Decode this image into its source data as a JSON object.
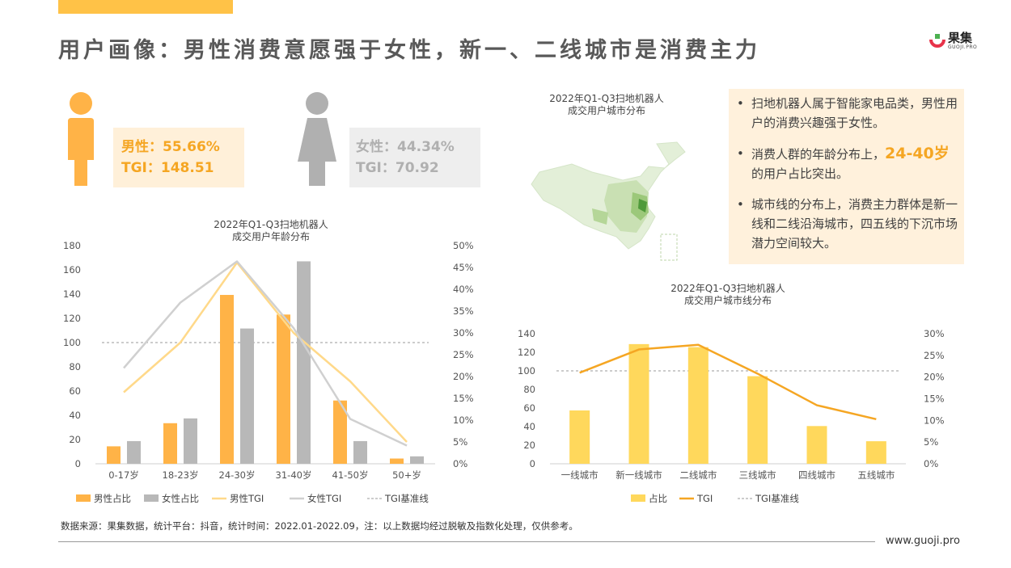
{
  "header": {
    "title": "用户画像：男性消费意愿强于女性，新一、二线城市是消费主力",
    "logo_text": "果集",
    "logo_sub": "GUOJI.PRO"
  },
  "gender": {
    "male": {
      "share_label": "男性：55.66%",
      "tgi_label": "TGI：148.51"
    },
    "female": {
      "share_label": "女性：44.34%",
      "tgi_label": "TGI：70.92"
    }
  },
  "map": {
    "title_line1": "2022年Q1-Q3扫地机器人",
    "title_line2": "成交用户城市分布"
  },
  "notes": {
    "item1": "扫地机器人属于智能家电品类，男性用户的消费兴趣强于女性。",
    "item2_pre": "消费人群的年龄分布上，",
    "item2_highlight": "24-40岁",
    "item2_post": "的用户占比突出。",
    "item3": "城市线的分布上，消费主力群体是新一线和二线沿海城市，四五线的下沉市场潜力空间较大。"
  },
  "colors": {
    "accent": "#f5a623",
    "male_bar": "#ffb347",
    "female_bar": "#b8b8b8",
    "male_tgi": "#ffd98a",
    "female_tgi": "#d0d0d0",
    "city_bar": "#ffd85c",
    "city_tgi": "#f5a623"
  },
  "footer": {
    "source": "数据来源：果集数据，统计平台：抖音，统计时间：2022.01-2022.09，注：以上数据均经过脱敏及指数化处理，仅供参考。",
    "url": "www.guoji.pro"
  },
  "chart_data": [
    {
      "type": "bar",
      "title_line1": "2022年Q1-Q3扫地机器人",
      "title_line2": "成交用户年龄分布",
      "categories": [
        "0-17岁",
        "18-23岁",
        "24-30岁",
        "31-40岁",
        "41-50岁",
        "50+岁"
      ],
      "left_axis": {
        "ticks": [
          "0",
          "20",
          "40",
          "60",
          "80",
          "100",
          "120",
          "140",
          "160",
          "180"
        ],
        "ylim": [
          0,
          180
        ]
      },
      "right_axis": {
        "ticks": [
          "0%",
          "5%",
          "10%",
          "15%",
          "20%",
          "25%",
          "30%",
          "35%",
          "40%",
          "45%",
          "50%"
        ],
        "ylim": [
          0,
          50
        ]
      },
      "series": [
        {
          "name": "男性占比",
          "kind": "bar",
          "axis": "right",
          "values": [
            4.0,
            9.3,
            38.7,
            34.2,
            14.5,
            1.2
          ]
        },
        {
          "name": "女性占比",
          "kind": "bar",
          "axis": "right",
          "values": [
            5.2,
            10.4,
            31.0,
            46.4,
            5.2,
            1.7
          ]
        },
        {
          "name": "男性TGI",
          "kind": "line",
          "axis": "left",
          "values": [
            59,
            100,
            166,
            108,
            68,
            18
          ]
        },
        {
          "name": "女性TGI",
          "kind": "line",
          "axis": "left",
          "values": [
            79,
            133,
            167,
            112,
            37,
            15
          ]
        },
        {
          "name": "TGI基准线",
          "kind": "refline",
          "axis": "left",
          "value": 100
        }
      ],
      "legend": [
        "男性占比",
        "女性占比",
        "男性TGI",
        "女性TGI",
        "TGI基准线"
      ],
      "legend_position": "bottom"
    },
    {
      "type": "bar",
      "title_line1": "2022年Q1-Q3扫地机器人",
      "title_line2": "成交用户城市线分布",
      "categories": [
        "一线城市",
        "新一线城市",
        "二线城市",
        "三线城市",
        "四线城市",
        "五线城市"
      ],
      "left_axis": {
        "ticks": [
          "0",
          "20",
          "40",
          "60",
          "80",
          "100",
          "120",
          "140"
        ],
        "ylim": [
          0,
          140
        ]
      },
      "right_axis": {
        "ticks": [
          "0%",
          "5%",
          "10%",
          "15%",
          "20%",
          "25%",
          "30%"
        ],
        "ylim": [
          0,
          30
        ]
      },
      "series": [
        {
          "name": "占比",
          "kind": "bar",
          "axis": "right",
          "values": [
            12.3,
            27.6,
            26.9,
            20.2,
            8.7,
            5.2
          ]
        },
        {
          "name": "TGI",
          "kind": "line",
          "axis": "left",
          "values": [
            98,
            123,
            128,
            97,
            63,
            48
          ]
        },
        {
          "name": "TGI基准线",
          "kind": "refline",
          "axis": "left",
          "value": 100
        }
      ],
      "legend": [
        "占比",
        "TGI",
        "TGI基准线"
      ],
      "legend_position": "bottom"
    }
  ]
}
